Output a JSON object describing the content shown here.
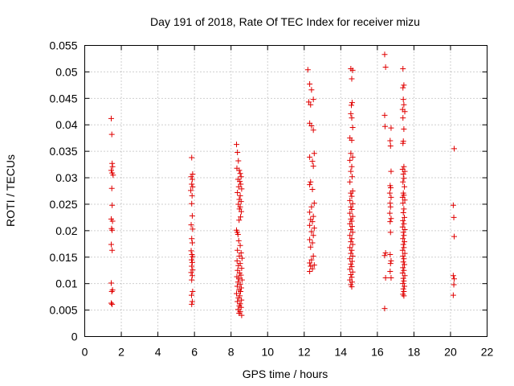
{
  "chart_data": {
    "type": "scatter",
    "title": "Day 191 of 2018, Rate Of TEC Index for receiver mizu",
    "xlabel": "GPS time / hours",
    "ylabel": "ROTI / TECUs",
    "xlim": [
      0,
      22
    ],
    "ylim": [
      0,
      0.055
    ],
    "xticks": [
      0,
      2,
      4,
      6,
      8,
      10,
      12,
      14,
      16,
      18,
      20,
      22
    ],
    "yticks": [
      0,
      0.005,
      0.01,
      0.015,
      0.02,
      0.025,
      0.03,
      0.035,
      0.04,
      0.045,
      0.05,
      0.055
    ],
    "xtick_labels": [
      "0",
      "2",
      "4",
      "6",
      "8",
      "10",
      "12",
      "14",
      "16",
      "18",
      "20",
      "22"
    ],
    "ytick_labels": [
      "0",
      "0.005",
      "0.01",
      "0.015",
      "0.02",
      "0.025",
      "0.03",
      "0.035",
      "0.04",
      "0.045",
      "0.05",
      "0.055"
    ],
    "grid": true,
    "marker": "+",
    "color": "#e00000",
    "series": [
      {
        "name": "ROTI",
        "points": [
          [
            1.45,
            0.0412
          ],
          [
            1.48,
            0.0382
          ],
          [
            1.5,
            0.0327
          ],
          [
            1.52,
            0.0321
          ],
          [
            1.45,
            0.0314
          ],
          [
            1.5,
            0.0309
          ],
          [
            1.55,
            0.0305
          ],
          [
            1.48,
            0.028
          ],
          [
            1.5,
            0.0248
          ],
          [
            1.45,
            0.0222
          ],
          [
            1.52,
            0.0218
          ],
          [
            1.47,
            0.0204
          ],
          [
            1.5,
            0.0201
          ],
          [
            1.45,
            0.0174
          ],
          [
            1.5,
            0.0163
          ],
          [
            1.45,
            0.0101
          ],
          [
            1.52,
            0.0088
          ],
          [
            1.48,
            0.0085
          ],
          [
            1.45,
            0.0063
          ],
          [
            1.5,
            0.0061
          ],
          [
            5.85,
            0.0338
          ],
          [
            5.9,
            0.0307
          ],
          [
            5.82,
            0.0302
          ],
          [
            5.88,
            0.0297
          ],
          [
            5.85,
            0.0288
          ],
          [
            5.9,
            0.0283
          ],
          [
            5.8,
            0.0276
          ],
          [
            5.87,
            0.0266
          ],
          [
            5.85,
            0.0251
          ],
          [
            5.88,
            0.0228
          ],
          [
            5.82,
            0.0211
          ],
          [
            5.9,
            0.0203
          ],
          [
            5.85,
            0.0185
          ],
          [
            5.88,
            0.0177
          ],
          [
            5.82,
            0.0162
          ],
          [
            5.86,
            0.0155
          ],
          [
            5.9,
            0.0151
          ],
          [
            5.84,
            0.0145
          ],
          [
            5.88,
            0.014
          ],
          [
            5.85,
            0.0133
          ],
          [
            5.9,
            0.0126
          ],
          [
            5.82,
            0.0121
          ],
          [
            5.88,
            0.0115
          ],
          [
            5.85,
            0.0107
          ],
          [
            5.9,
            0.0085
          ],
          [
            5.84,
            0.0078
          ],
          [
            5.88,
            0.0066
          ],
          [
            5.85,
            0.0061
          ],
          [
            8.3,
            0.0363
          ],
          [
            8.35,
            0.0348
          ],
          [
            8.4,
            0.0332
          ],
          [
            8.32,
            0.0318
          ],
          [
            8.45,
            0.0314
          ],
          [
            8.5,
            0.0308
          ],
          [
            8.55,
            0.0302
          ],
          [
            8.38,
            0.0297
          ],
          [
            8.48,
            0.0293
          ],
          [
            8.53,
            0.0288
          ],
          [
            8.42,
            0.0283
          ],
          [
            8.58,
            0.0279
          ],
          [
            8.35,
            0.0272
          ],
          [
            8.5,
            0.0266
          ],
          [
            8.45,
            0.0259
          ],
          [
            8.55,
            0.0255
          ],
          [
            8.4,
            0.025
          ],
          [
            8.5,
            0.0245
          ],
          [
            8.46,
            0.0241
          ],
          [
            8.56,
            0.0236
          ],
          [
            8.52,
            0.0226
          ],
          [
            8.44,
            0.022
          ],
          [
            8.3,
            0.0201
          ],
          [
            8.34,
            0.0197
          ],
          [
            8.38,
            0.0193
          ],
          [
            8.42,
            0.0181
          ],
          [
            8.5,
            0.0172
          ],
          [
            8.35,
            0.0163
          ],
          [
            8.55,
            0.0158
          ],
          [
            8.45,
            0.0152
          ],
          [
            8.6,
            0.0148
          ],
          [
            8.33,
            0.0143
          ],
          [
            8.5,
            0.0138
          ],
          [
            8.4,
            0.0134
          ],
          [
            8.58,
            0.0129
          ],
          [
            8.36,
            0.0125
          ],
          [
            8.47,
            0.012
          ],
          [
            8.54,
            0.0116
          ],
          [
            8.32,
            0.0113
          ],
          [
            8.43,
            0.011
          ],
          [
            8.6,
            0.0107
          ],
          [
            8.38,
            0.0103
          ],
          [
            8.5,
            0.0099
          ],
          [
            8.34,
            0.0095
          ],
          [
            8.56,
            0.0092
          ],
          [
            8.44,
            0.0088
          ],
          [
            8.52,
            0.0085
          ],
          [
            8.3,
            0.0081
          ],
          [
            8.48,
            0.0077
          ],
          [
            8.4,
            0.0073
          ],
          [
            8.57,
            0.0069
          ],
          [
            8.35,
            0.0066
          ],
          [
            8.5,
            0.0062
          ],
          [
            8.45,
            0.0058
          ],
          [
            8.55,
            0.0055
          ],
          [
            8.38,
            0.0051
          ],
          [
            8.5,
            0.0047
          ],
          [
            8.44,
            0.0044
          ],
          [
            8.58,
            0.004
          ],
          [
            12.2,
            0.0504
          ],
          [
            12.3,
            0.0477
          ],
          [
            12.4,
            0.0466
          ],
          [
            12.5,
            0.0448
          ],
          [
            12.25,
            0.0443
          ],
          [
            12.35,
            0.0438
          ],
          [
            12.3,
            0.0403
          ],
          [
            12.4,
            0.0398
          ],
          [
            12.5,
            0.039
          ],
          [
            12.55,
            0.0346
          ],
          [
            12.3,
            0.0339
          ],
          [
            12.45,
            0.0331
          ],
          [
            12.5,
            0.0322
          ],
          [
            12.35,
            0.0292
          ],
          [
            12.3,
            0.0287
          ],
          [
            12.45,
            0.0278
          ],
          [
            12.55,
            0.0252
          ],
          [
            12.4,
            0.0245
          ],
          [
            12.3,
            0.0235
          ],
          [
            12.5,
            0.0227
          ],
          [
            12.35,
            0.0221
          ],
          [
            12.45,
            0.0217
          ],
          [
            12.3,
            0.021
          ],
          [
            12.55,
            0.0205
          ],
          [
            12.4,
            0.0198
          ],
          [
            12.5,
            0.0191
          ],
          [
            12.3,
            0.0183
          ],
          [
            12.45,
            0.0177
          ],
          [
            12.35,
            0.0169
          ],
          [
            12.5,
            0.0152
          ],
          [
            12.4,
            0.0145
          ],
          [
            12.3,
            0.0139
          ],
          [
            12.55,
            0.0135
          ],
          [
            12.35,
            0.0133
          ],
          [
            12.45,
            0.0128
          ],
          [
            12.3,
            0.0123
          ],
          [
            14.55,
            0.0506
          ],
          [
            14.65,
            0.0503
          ],
          [
            14.6,
            0.0487
          ],
          [
            14.62,
            0.0442
          ],
          [
            14.58,
            0.0437
          ],
          [
            14.55,
            0.0421
          ],
          [
            14.6,
            0.0413
          ],
          [
            14.65,
            0.0395
          ],
          [
            14.5,
            0.0375
          ],
          [
            14.6,
            0.0371
          ],
          [
            14.55,
            0.0346
          ],
          [
            14.65,
            0.0339
          ],
          [
            14.5,
            0.0333
          ],
          [
            14.6,
            0.0321
          ],
          [
            14.55,
            0.0312
          ],
          [
            14.62,
            0.0302
          ],
          [
            14.5,
            0.0292
          ],
          [
            14.65,
            0.0275
          ],
          [
            14.55,
            0.0271
          ],
          [
            14.6,
            0.0265
          ],
          [
            14.5,
            0.0257
          ],
          [
            14.65,
            0.0251
          ],
          [
            14.55,
            0.0245
          ],
          [
            14.6,
            0.024
          ],
          [
            14.5,
            0.0233
          ],
          [
            14.65,
            0.0227
          ],
          [
            14.55,
            0.0222
          ],
          [
            14.6,
            0.0218
          ],
          [
            14.5,
            0.0213
          ],
          [
            14.62,
            0.0208
          ],
          [
            14.55,
            0.0202
          ],
          [
            14.65,
            0.0197
          ],
          [
            14.5,
            0.0191
          ],
          [
            14.6,
            0.0185
          ],
          [
            14.55,
            0.0179
          ],
          [
            14.65,
            0.0174
          ],
          [
            14.5,
            0.0168
          ],
          [
            14.6,
            0.0163
          ],
          [
            14.55,
            0.0157
          ],
          [
            14.65,
            0.0152
          ],
          [
            14.5,
            0.0147
          ],
          [
            14.62,
            0.0142
          ],
          [
            14.55,
            0.0137
          ],
          [
            14.6,
            0.0132
          ],
          [
            14.5,
            0.0127
          ],
          [
            14.65,
            0.0122
          ],
          [
            14.55,
            0.0117
          ],
          [
            14.6,
            0.0112
          ],
          [
            14.5,
            0.0107
          ],
          [
            14.62,
            0.0103
          ],
          [
            14.55,
            0.0098
          ],
          [
            14.6,
            0.0094
          ],
          [
            16.4,
            0.0533
          ],
          [
            16.45,
            0.0509
          ],
          [
            16.4,
            0.0418
          ],
          [
            16.42,
            0.0397
          ],
          [
            16.75,
            0.0394
          ],
          [
            16.7,
            0.037
          ],
          [
            16.72,
            0.036
          ],
          [
            16.75,
            0.0312
          ],
          [
            16.7,
            0.0285
          ],
          [
            16.73,
            0.0281
          ],
          [
            16.68,
            0.0271
          ],
          [
            16.75,
            0.0263
          ],
          [
            16.7,
            0.0252
          ],
          [
            16.72,
            0.0245
          ],
          [
            16.68,
            0.0233
          ],
          [
            16.75,
            0.0223
          ],
          [
            16.7,
            0.0217
          ],
          [
            16.72,
            0.0197
          ],
          [
            16.45,
            0.0158
          ],
          [
            16.4,
            0.0153
          ],
          [
            16.7,
            0.0155
          ],
          [
            16.75,
            0.0143
          ],
          [
            16.72,
            0.0138
          ],
          [
            16.7,
            0.0123
          ],
          [
            16.45,
            0.0111
          ],
          [
            16.75,
            0.0111
          ],
          [
            16.4,
            0.0053
          ],
          [
            17.4,
            0.0506
          ],
          [
            17.45,
            0.0475
          ],
          [
            17.4,
            0.047
          ],
          [
            17.42,
            0.0448
          ],
          [
            17.45,
            0.0438
          ],
          [
            17.38,
            0.0429
          ],
          [
            17.5,
            0.0425
          ],
          [
            17.4,
            0.0413
          ],
          [
            17.45,
            0.0392
          ],
          [
            17.42,
            0.0369
          ],
          [
            17.4,
            0.0365
          ],
          [
            17.45,
            0.0321
          ],
          [
            17.38,
            0.0316
          ],
          [
            17.5,
            0.0312
          ],
          [
            17.42,
            0.0307
          ],
          [
            17.45,
            0.0299
          ],
          [
            17.4,
            0.0292
          ],
          [
            17.48,
            0.0283
          ],
          [
            17.42,
            0.0271
          ],
          [
            17.45,
            0.0267
          ],
          [
            17.38,
            0.0263
          ],
          [
            17.5,
            0.0258
          ],
          [
            17.4,
            0.0252
          ],
          [
            17.45,
            0.0241
          ],
          [
            17.42,
            0.0234
          ],
          [
            17.48,
            0.0225
          ],
          [
            17.4,
            0.0219
          ],
          [
            17.45,
            0.0213
          ],
          [
            17.38,
            0.0207
          ],
          [
            17.5,
            0.0202
          ],
          [
            17.42,
            0.0197
          ],
          [
            17.45,
            0.0191
          ],
          [
            17.4,
            0.0185
          ],
          [
            17.48,
            0.0179
          ],
          [
            17.42,
            0.0174
          ],
          [
            17.45,
            0.0168
          ],
          [
            17.38,
            0.0163
          ],
          [
            17.5,
            0.0157
          ],
          [
            17.4,
            0.0152
          ],
          [
            17.45,
            0.0147
          ],
          [
            17.42,
            0.0141
          ],
          [
            17.48,
            0.0136
          ],
          [
            17.4,
            0.013
          ],
          [
            17.45,
            0.0125
          ],
          [
            17.38,
            0.012
          ],
          [
            17.5,
            0.0115
          ],
          [
            17.42,
            0.011
          ],
          [
            17.45,
            0.0105
          ],
          [
            17.4,
            0.01
          ],
          [
            17.48,
            0.0095
          ],
          [
            17.42,
            0.009
          ],
          [
            17.45,
            0.0085
          ],
          [
            17.4,
            0.008
          ],
          [
            17.45,
            0.0077
          ],
          [
            20.2,
            0.0355
          ],
          [
            20.15,
            0.0248
          ],
          [
            20.18,
            0.0225
          ],
          [
            20.2,
            0.0189
          ],
          [
            20.15,
            0.0115
          ],
          [
            20.2,
            0.0109
          ],
          [
            20.18,
            0.0098
          ],
          [
            20.15,
            0.0078
          ]
        ]
      }
    ]
  }
}
